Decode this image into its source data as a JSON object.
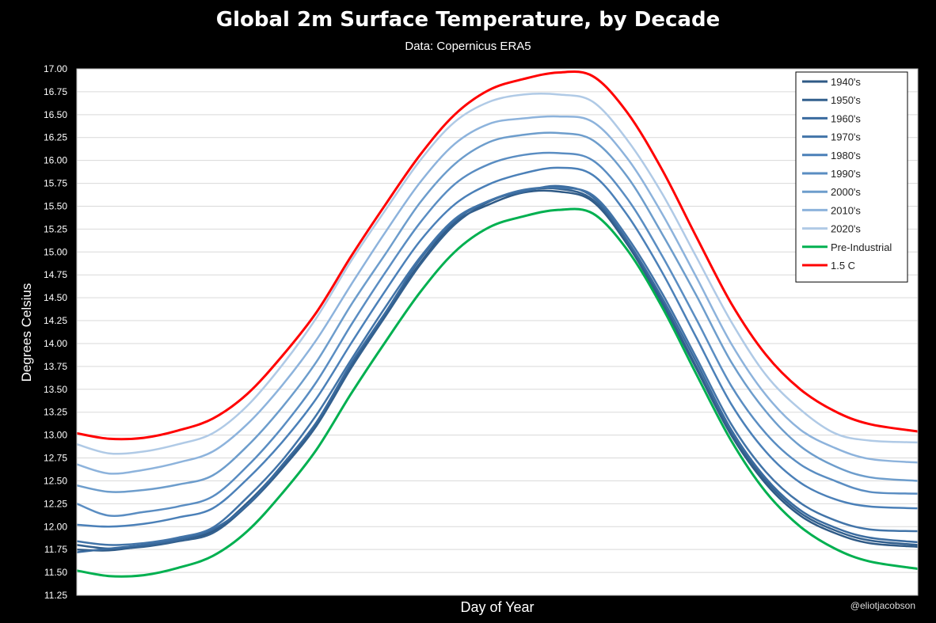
{
  "header": {
    "title": "Global 2m Surface Temperature, by Decade",
    "subtitle": "Data: Copernicus ERA5",
    "credit": "@eliotjacobson"
  },
  "chart_data": {
    "type": "line",
    "title": "Global 2m Surface Temperature, by Decade",
    "subtitle": "Data: Copernicus ERA5",
    "xlabel": "Day of Year",
    "ylabel": "Degrees Celsius",
    "xlim": [
      1,
      366
    ],
    "ylim": [
      11.25,
      17.0
    ],
    "yticks": [
      "11.25",
      "11.50",
      "11.75",
      "12.00",
      "12.25",
      "12.50",
      "12.75",
      "13.00",
      "13.25",
      "13.50",
      "13.75",
      "14.00",
      "14.25",
      "14.50",
      "14.75",
      "15.00",
      "15.25",
      "15.50",
      "15.75",
      "16.00",
      "16.25",
      "16.50",
      "16.75",
      "17.00"
    ],
    "grid": true,
    "legend_position": "top-right",
    "x_days": [
      1,
      15,
      30,
      45,
      60,
      75,
      90,
      105,
      120,
      135,
      150,
      165,
      180,
      195,
      210,
      225,
      240,
      255,
      270,
      285,
      300,
      315,
      330,
      345,
      366
    ],
    "series": [
      {
        "name": "1940's",
        "color": "#2f5a86",
        "values": [
          11.75,
          11.74,
          11.79,
          11.86,
          11.95,
          12.26,
          12.66,
          13.12,
          13.75,
          14.32,
          14.88,
          15.32,
          15.52,
          15.65,
          15.66,
          15.55,
          15.08,
          14.44,
          13.72,
          13.0,
          12.47,
          12.12,
          11.93,
          11.82,
          11.78
        ]
      },
      {
        "name": "1950's",
        "color": "#33608e",
        "values": [
          11.8,
          11.76,
          11.78,
          11.84,
          11.93,
          12.23,
          12.63,
          13.1,
          13.73,
          14.3,
          14.86,
          15.3,
          15.55,
          15.67,
          15.69,
          15.57,
          15.1,
          14.46,
          13.74,
          13.02,
          12.5,
          12.15,
          11.96,
          11.85,
          11.8
        ]
      },
      {
        "name": "1960's",
        "color": "#3a6b9f",
        "values": [
          11.72,
          11.76,
          11.8,
          11.86,
          11.97,
          12.24,
          12.67,
          13.14,
          13.78,
          14.34,
          14.92,
          15.34,
          15.56,
          15.66,
          15.72,
          15.6,
          15.12,
          14.5,
          13.79,
          13.06,
          12.53,
          12.18,
          11.99,
          11.88,
          11.83
        ]
      },
      {
        "name": "1970's",
        "color": "#4274a8",
        "values": [
          11.84,
          11.8,
          11.82,
          11.88,
          11.99,
          12.32,
          12.72,
          13.22,
          13.82,
          14.4,
          14.94,
          15.36,
          15.56,
          15.68,
          15.7,
          15.62,
          15.16,
          14.55,
          13.84,
          13.12,
          12.6,
          12.26,
          12.07,
          11.97,
          11.95
        ]
      },
      {
        "name": "1980's",
        "color": "#4b80b8",
        "values": [
          12.02,
          12.0,
          12.03,
          12.1,
          12.2,
          12.52,
          12.92,
          13.4,
          14.0,
          14.58,
          15.12,
          15.52,
          15.74,
          15.86,
          15.92,
          15.84,
          15.4,
          14.78,
          14.06,
          13.34,
          12.82,
          12.48,
          12.3,
          12.22,
          12.2
        ]
      },
      {
        "name": "1990's",
        "color": "#5a8dc2",
        "values": [
          12.25,
          12.12,
          12.16,
          12.22,
          12.33,
          12.66,
          13.08,
          13.58,
          14.2,
          14.78,
          15.32,
          15.74,
          15.96,
          16.06,
          16.08,
          16.0,
          15.58,
          14.96,
          14.26,
          13.54,
          13.02,
          12.68,
          12.5,
          12.38,
          12.36
        ]
      },
      {
        "name": "2000's",
        "color": "#6d9dcc",
        "values": [
          12.45,
          12.38,
          12.4,
          12.46,
          12.56,
          12.88,
          13.3,
          13.8,
          14.42,
          14.98,
          15.54,
          15.96,
          16.2,
          16.28,
          16.3,
          16.22,
          15.82,
          15.2,
          14.52,
          13.8,
          13.26,
          12.88,
          12.66,
          12.54,
          12.5
        ]
      },
      {
        "name": "2010's",
        "color": "#8db3dc",
        "values": [
          12.68,
          12.58,
          12.62,
          12.7,
          12.82,
          13.12,
          13.54,
          14.04,
          14.64,
          15.22,
          15.76,
          16.18,
          16.4,
          16.46,
          16.48,
          16.42,
          16.02,
          15.42,
          14.72,
          14.0,
          13.44,
          13.06,
          12.86,
          12.74,
          12.7
        ]
      },
      {
        "name": "2020's",
        "color": "#b0cae6",
        "values": [
          12.9,
          12.8,
          12.82,
          12.9,
          13.02,
          13.32,
          13.76,
          14.28,
          14.9,
          15.46,
          16.0,
          16.42,
          16.64,
          16.72,
          16.72,
          16.64,
          16.22,
          15.64,
          14.94,
          14.24,
          13.66,
          13.28,
          13.02,
          12.94,
          12.92
        ]
      },
      {
        "name": "Pre-Industrial",
        "color": "#00b050",
        "values": [
          11.52,
          11.46,
          11.47,
          11.55,
          11.68,
          11.95,
          12.36,
          12.84,
          13.45,
          14.02,
          14.56,
          15.0,
          15.27,
          15.39,
          15.46,
          15.42,
          15.02,
          14.4,
          13.66,
          12.94,
          12.38,
          12.0,
          11.76,
          11.62,
          11.54
        ]
      },
      {
        "name": "1.5 C",
        "color": "#ff0000",
        "values": [
          13.02,
          12.96,
          12.97,
          13.05,
          13.18,
          13.45,
          13.86,
          14.34,
          14.95,
          15.52,
          16.06,
          16.5,
          16.77,
          16.89,
          16.96,
          16.92,
          16.52,
          15.9,
          15.16,
          14.44,
          13.88,
          13.5,
          13.26,
          13.12,
          13.04
        ]
      }
    ]
  }
}
